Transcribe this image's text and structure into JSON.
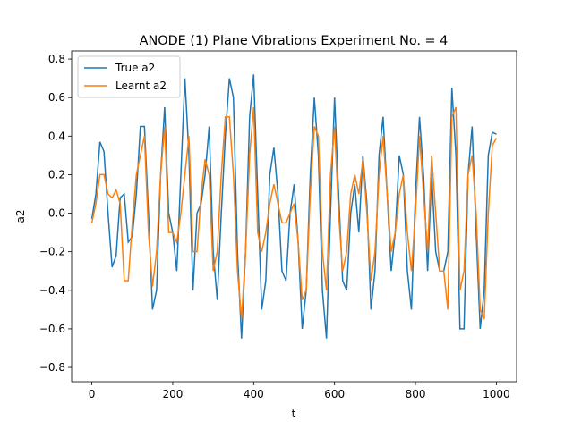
{
  "chart_data": {
    "type": "line",
    "title": "ANODE (1) Plane Vibrations Experiment No. = 4",
    "xlabel": "t",
    "ylabel": "a2",
    "x": [
      0,
      10,
      20,
      30,
      40,
      50,
      60,
      70,
      80,
      90,
      100,
      110,
      120,
      130,
      140,
      150,
      160,
      170,
      180,
      190,
      200,
      210,
      220,
      230,
      240,
      250,
      260,
      270,
      280,
      290,
      300,
      310,
      320,
      330,
      340,
      350,
      360,
      370,
      380,
      390,
      400,
      410,
      420,
      430,
      440,
      450,
      460,
      470,
      480,
      490,
      500,
      510,
      520,
      530,
      540,
      550,
      560,
      570,
      580,
      590,
      600,
      610,
      620,
      630,
      640,
      650,
      660,
      670,
      680,
      690,
      700,
      710,
      720,
      730,
      740,
      750,
      760,
      770,
      780,
      790,
      800,
      810,
      820,
      830,
      840,
      850,
      860,
      870,
      880,
      890,
      900,
      910,
      920,
      930,
      940,
      950,
      960,
      970,
      980,
      990,
      1000
    ],
    "series": [
      {
        "name": "True a2",
        "color": "#1f77b4",
        "values": [
          -0.03,
          0.1,
          0.37,
          0.32,
          0.0,
          -0.28,
          -0.22,
          0.08,
          0.1,
          -0.15,
          -0.12,
          0.1,
          0.45,
          0.45,
          0.0,
          -0.5,
          -0.4,
          0.2,
          0.55,
          0.0,
          -0.1,
          -0.3,
          0.2,
          0.7,
          0.3,
          -0.4,
          0.0,
          0.05,
          0.2,
          0.45,
          -0.2,
          -0.45,
          0.0,
          0.4,
          0.7,
          0.6,
          -0.2,
          -0.65,
          -0.2,
          0.5,
          0.72,
          0.1,
          -0.5,
          -0.35,
          0.2,
          0.34,
          0.1,
          -0.3,
          -0.35,
          0.0,
          0.15,
          -0.15,
          -0.6,
          -0.4,
          0.2,
          0.6,
          0.3,
          -0.4,
          -0.65,
          0.0,
          0.6,
          0.1,
          -0.35,
          -0.4,
          0.0,
          0.15,
          -0.1,
          0.3,
          0.05,
          -0.5,
          -0.3,
          0.3,
          0.5,
          0.1,
          -0.3,
          -0.1,
          0.3,
          0.2,
          -0.3,
          -0.5,
          0.1,
          0.5,
          0.2,
          -0.3,
          0.2,
          -0.2,
          -0.3,
          -0.3,
          -0.2,
          0.65,
          0.3,
          -0.6,
          -0.6,
          0.2,
          0.45,
          -0.1,
          -0.6,
          -0.4,
          0.3,
          0.42,
          0.41
        ]
      },
      {
        "name": "Learnt a2",
        "color": "#ff7f0e",
        "values": [
          -0.05,
          0.05,
          0.2,
          0.2,
          0.1,
          0.08,
          0.12,
          0.05,
          -0.35,
          -0.35,
          -0.05,
          0.2,
          0.3,
          0.4,
          -0.1,
          -0.38,
          -0.2,
          0.2,
          0.45,
          -0.1,
          -0.1,
          -0.15,
          0.0,
          0.2,
          0.4,
          -0.2,
          -0.2,
          0.1,
          0.28,
          0.2,
          -0.3,
          -0.2,
          0.2,
          0.5,
          0.5,
          0.2,
          -0.3,
          -0.55,
          -0.2,
          0.3,
          0.55,
          -0.1,
          -0.2,
          -0.1,
          0.05,
          0.15,
          0.05,
          -0.05,
          -0.05,
          0.0,
          0.05,
          -0.15,
          -0.45,
          -0.4,
          0.1,
          0.45,
          0.4,
          -0.2,
          -0.4,
          0.2,
          0.45,
          0.0,
          -0.3,
          -0.2,
          0.1,
          0.2,
          0.1,
          0.28,
          0.0,
          -0.35,
          -0.2,
          0.2,
          0.4,
          0.1,
          -0.2,
          -0.1,
          0.1,
          0.2,
          -0.1,
          -0.3,
          0.0,
          0.4,
          0.1,
          -0.2,
          0.3,
          0.0,
          -0.3,
          -0.3,
          -0.5,
          0.5,
          0.55,
          -0.4,
          -0.3,
          0.2,
          0.3,
          0.0,
          -0.5,
          -0.55,
          0.0,
          0.35,
          0.39
        ]
      }
    ],
    "xlim": [
      -50,
      1050
    ],
    "ylim": [
      -0.874,
      0.842
    ],
    "xticks": [
      0,
      200,
      400,
      600,
      800,
      1000
    ],
    "yticks": [
      {
        "value": -0.8,
        "label": "−0.8"
      },
      {
        "value": -0.6,
        "label": "−0.6"
      },
      {
        "value": -0.4,
        "label": "−0.4"
      },
      {
        "value": -0.2,
        "label": "−0.2"
      },
      {
        "value": 0,
        "label": "0.0"
      },
      {
        "value": 0.2,
        "label": "0.2"
      },
      {
        "value": 0.4,
        "label": "0.4"
      },
      {
        "value": 0.6,
        "label": "0.6"
      },
      {
        "value": 0.8,
        "label": "0.8"
      }
    ],
    "legend": "upper left",
    "grid": false
  }
}
